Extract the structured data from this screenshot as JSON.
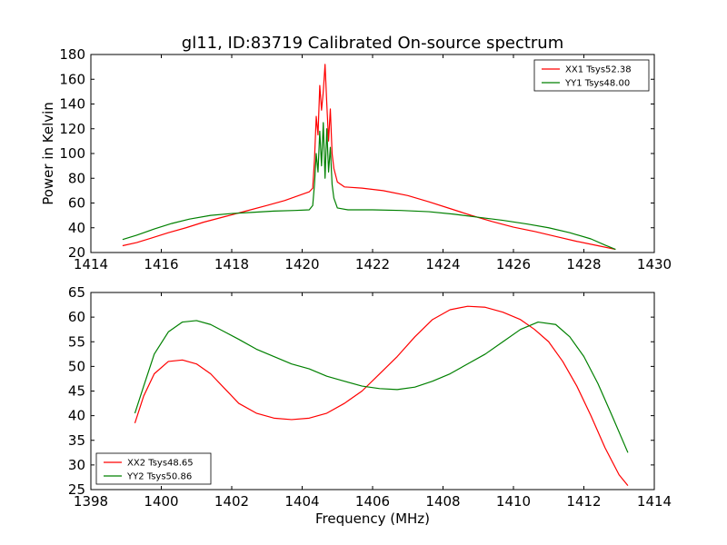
{
  "chart_data": [
    {
      "type": "line",
      "title": "gl11, ID:83719 Calibrated On-source spectrum",
      "xlabel": "",
      "ylabel": "Power in Kelvin",
      "xlim": [
        1414,
        1430
      ],
      "ylim": [
        20,
        180
      ],
      "xticks": [
        "1414",
        "1416",
        "1418",
        "1420",
        "1422",
        "1424",
        "1426",
        "1428",
        "1430"
      ],
      "yticks": [
        "20",
        "40",
        "60",
        "80",
        "100",
        "120",
        "140",
        "160",
        "180"
      ],
      "grid": false,
      "legend_position": "top-right",
      "series": [
        {
          "name": "XX1 Tsys52.38",
          "color": "#ff0000",
          "points": [
            [
              1414.9,
              25.5
            ],
            [
              1415.3,
              28
            ],
            [
              1415.7,
              31.5
            ],
            [
              1416.2,
              36
            ],
            [
              1416.7,
              40
            ],
            [
              1417.2,
              44.5
            ],
            [
              1417.8,
              49
            ],
            [
              1418.4,
              53.5
            ],
            [
              1419.0,
              58
            ],
            [
              1419.5,
              62
            ],
            [
              1419.9,
              66
            ],
            [
              1420.2,
              69
            ],
            [
              1420.3,
              72
            ],
            [
              1420.35,
              95
            ],
            [
              1420.4,
              130
            ],
            [
              1420.45,
              115
            ],
            [
              1420.5,
              155
            ],
            [
              1420.55,
              135
            ],
            [
              1420.6,
              150
            ],
            [
              1420.65,
              172
            ],
            [
              1420.7,
              140
            ],
            [
              1420.75,
              110
            ],
            [
              1420.8,
              136
            ],
            [
              1420.85,
              100
            ],
            [
              1420.9,
              88
            ],
            [
              1421.0,
              77
            ],
            [
              1421.2,
              73
            ],
            [
              1421.7,
              72
            ],
            [
              1422.3,
              70
            ],
            [
              1423.0,
              66
            ],
            [
              1423.6,
              61
            ],
            [
              1424.2,
              55.5
            ],
            [
              1424.8,
              50
            ],
            [
              1425.4,
              45
            ],
            [
              1426.0,
              40.5
            ],
            [
              1426.6,
              37
            ],
            [
              1427.2,
              33
            ],
            [
              1427.8,
              29
            ],
            [
              1428.4,
              25.5
            ],
            [
              1428.9,
              22.5
            ]
          ]
        },
        {
          "name": "YY1 Tsys48.00",
          "color": "#008000",
          "points": [
            [
              1414.9,
              30.5
            ],
            [
              1415.3,
              34
            ],
            [
              1415.8,
              39
            ],
            [
              1416.3,
              43.5
            ],
            [
              1416.8,
              47
            ],
            [
              1417.4,
              50
            ],
            [
              1418.0,
              51.5
            ],
            [
              1418.6,
              52.5
            ],
            [
              1419.2,
              53.5
            ],
            [
              1419.8,
              54
            ],
            [
              1420.2,
              54.5
            ],
            [
              1420.3,
              58
            ],
            [
              1420.35,
              75
            ],
            [
              1420.4,
              100
            ],
            [
              1420.45,
              85
            ],
            [
              1420.5,
              118
            ],
            [
              1420.55,
              90
            ],
            [
              1420.6,
              125
            ],
            [
              1420.65,
              80
            ],
            [
              1420.7,
              120
            ],
            [
              1420.75,
              85
            ],
            [
              1420.8,
              105
            ],
            [
              1420.85,
              75
            ],
            [
              1420.9,
              64
            ],
            [
              1421.0,
              56
            ],
            [
              1421.3,
              54.5
            ],
            [
              1422.0,
              54.5
            ],
            [
              1422.8,
              54
            ],
            [
              1423.6,
              53
            ],
            [
              1424.3,
              51
            ],
            [
              1425.0,
              48.5
            ],
            [
              1425.7,
              46
            ],
            [
              1426.4,
              43
            ],
            [
              1427.0,
              40
            ],
            [
              1427.6,
              36
            ],
            [
              1428.2,
              31
            ],
            [
              1428.6,
              26
            ],
            [
              1428.9,
              22.5
            ]
          ]
        }
      ]
    },
    {
      "type": "line",
      "title": "",
      "xlabel": "Frequency (MHz)",
      "ylabel": "",
      "xlim": [
        1398,
        1414
      ],
      "ylim": [
        25,
        65
      ],
      "xticks": [
        "1398",
        "1400",
        "1402",
        "1404",
        "1406",
        "1408",
        "1410",
        "1412",
        "1414"
      ],
      "yticks": [
        "25",
        "30",
        "35",
        "40",
        "45",
        "50",
        "55",
        "60",
        "65"
      ],
      "grid": false,
      "legend_position": "bottom-left",
      "series": [
        {
          "name": "XX2 Tsys48.65",
          "color": "#ff0000",
          "points": [
            [
              1399.25,
              38.5
            ],
            [
              1399.5,
              44
            ],
            [
              1399.8,
              48.5
            ],
            [
              1400.2,
              51
            ],
            [
              1400.6,
              51.3
            ],
            [
              1401.0,
              50.5
            ],
            [
              1401.4,
              48.5
            ],
            [
              1401.8,
              45.5
            ],
            [
              1402.2,
              42.5
            ],
            [
              1402.7,
              40.5
            ],
            [
              1403.2,
              39.5
            ],
            [
              1403.7,
              39.2
            ],
            [
              1404.2,
              39.5
            ],
            [
              1404.7,
              40.5
            ],
            [
              1405.2,
              42.5
            ],
            [
              1405.7,
              45
            ],
            [
              1406.2,
              48.5
            ],
            [
              1406.7,
              52
            ],
            [
              1407.2,
              56
            ],
            [
              1407.7,
              59.5
            ],
            [
              1408.2,
              61.5
            ],
            [
              1408.7,
              62.2
            ],
            [
              1409.2,
              62
            ],
            [
              1409.7,
              61
            ],
            [
              1410.2,
              59.5
            ],
            [
              1410.6,
              57.5
            ],
            [
              1411.0,
              55
            ],
            [
              1411.4,
              51
            ],
            [
              1411.8,
              46
            ],
            [
              1412.2,
              40
            ],
            [
              1412.6,
              33.5
            ],
            [
              1413.0,
              28
            ],
            [
              1413.25,
              25.8
            ]
          ]
        },
        {
          "name": "YY2 Tsys50.86",
          "color": "#008000",
          "points": [
            [
              1399.25,
              40.5
            ],
            [
              1399.5,
              46
            ],
            [
              1399.8,
              52.5
            ],
            [
              1400.2,
              57
            ],
            [
              1400.6,
              59
            ],
            [
              1401.0,
              59.3
            ],
            [
              1401.4,
              58.5
            ],
            [
              1401.8,
              57
            ],
            [
              1402.2,
              55.5
            ],
            [
              1402.7,
              53.5
            ],
            [
              1403.2,
              52
            ],
            [
              1403.7,
              50.5
            ],
            [
              1404.2,
              49.5
            ],
            [
              1404.7,
              48
            ],
            [
              1405.2,
              47
            ],
            [
              1405.7,
              46
            ],
            [
              1406.2,
              45.5
            ],
            [
              1406.7,
              45.3
            ],
            [
              1407.2,
              45.8
            ],
            [
              1407.7,
              47
            ],
            [
              1408.2,
              48.5
            ],
            [
              1408.7,
              50.5
            ],
            [
              1409.2,
              52.5
            ],
            [
              1409.7,
              55
            ],
            [
              1410.2,
              57.5
            ],
            [
              1410.7,
              59
            ],
            [
              1411.2,
              58.5
            ],
            [
              1411.6,
              56
            ],
            [
              1412.0,
              52
            ],
            [
              1412.4,
              46.5
            ],
            [
              1412.8,
              40
            ],
            [
              1413.25,
              32.5
            ]
          ]
        }
      ]
    }
  ]
}
